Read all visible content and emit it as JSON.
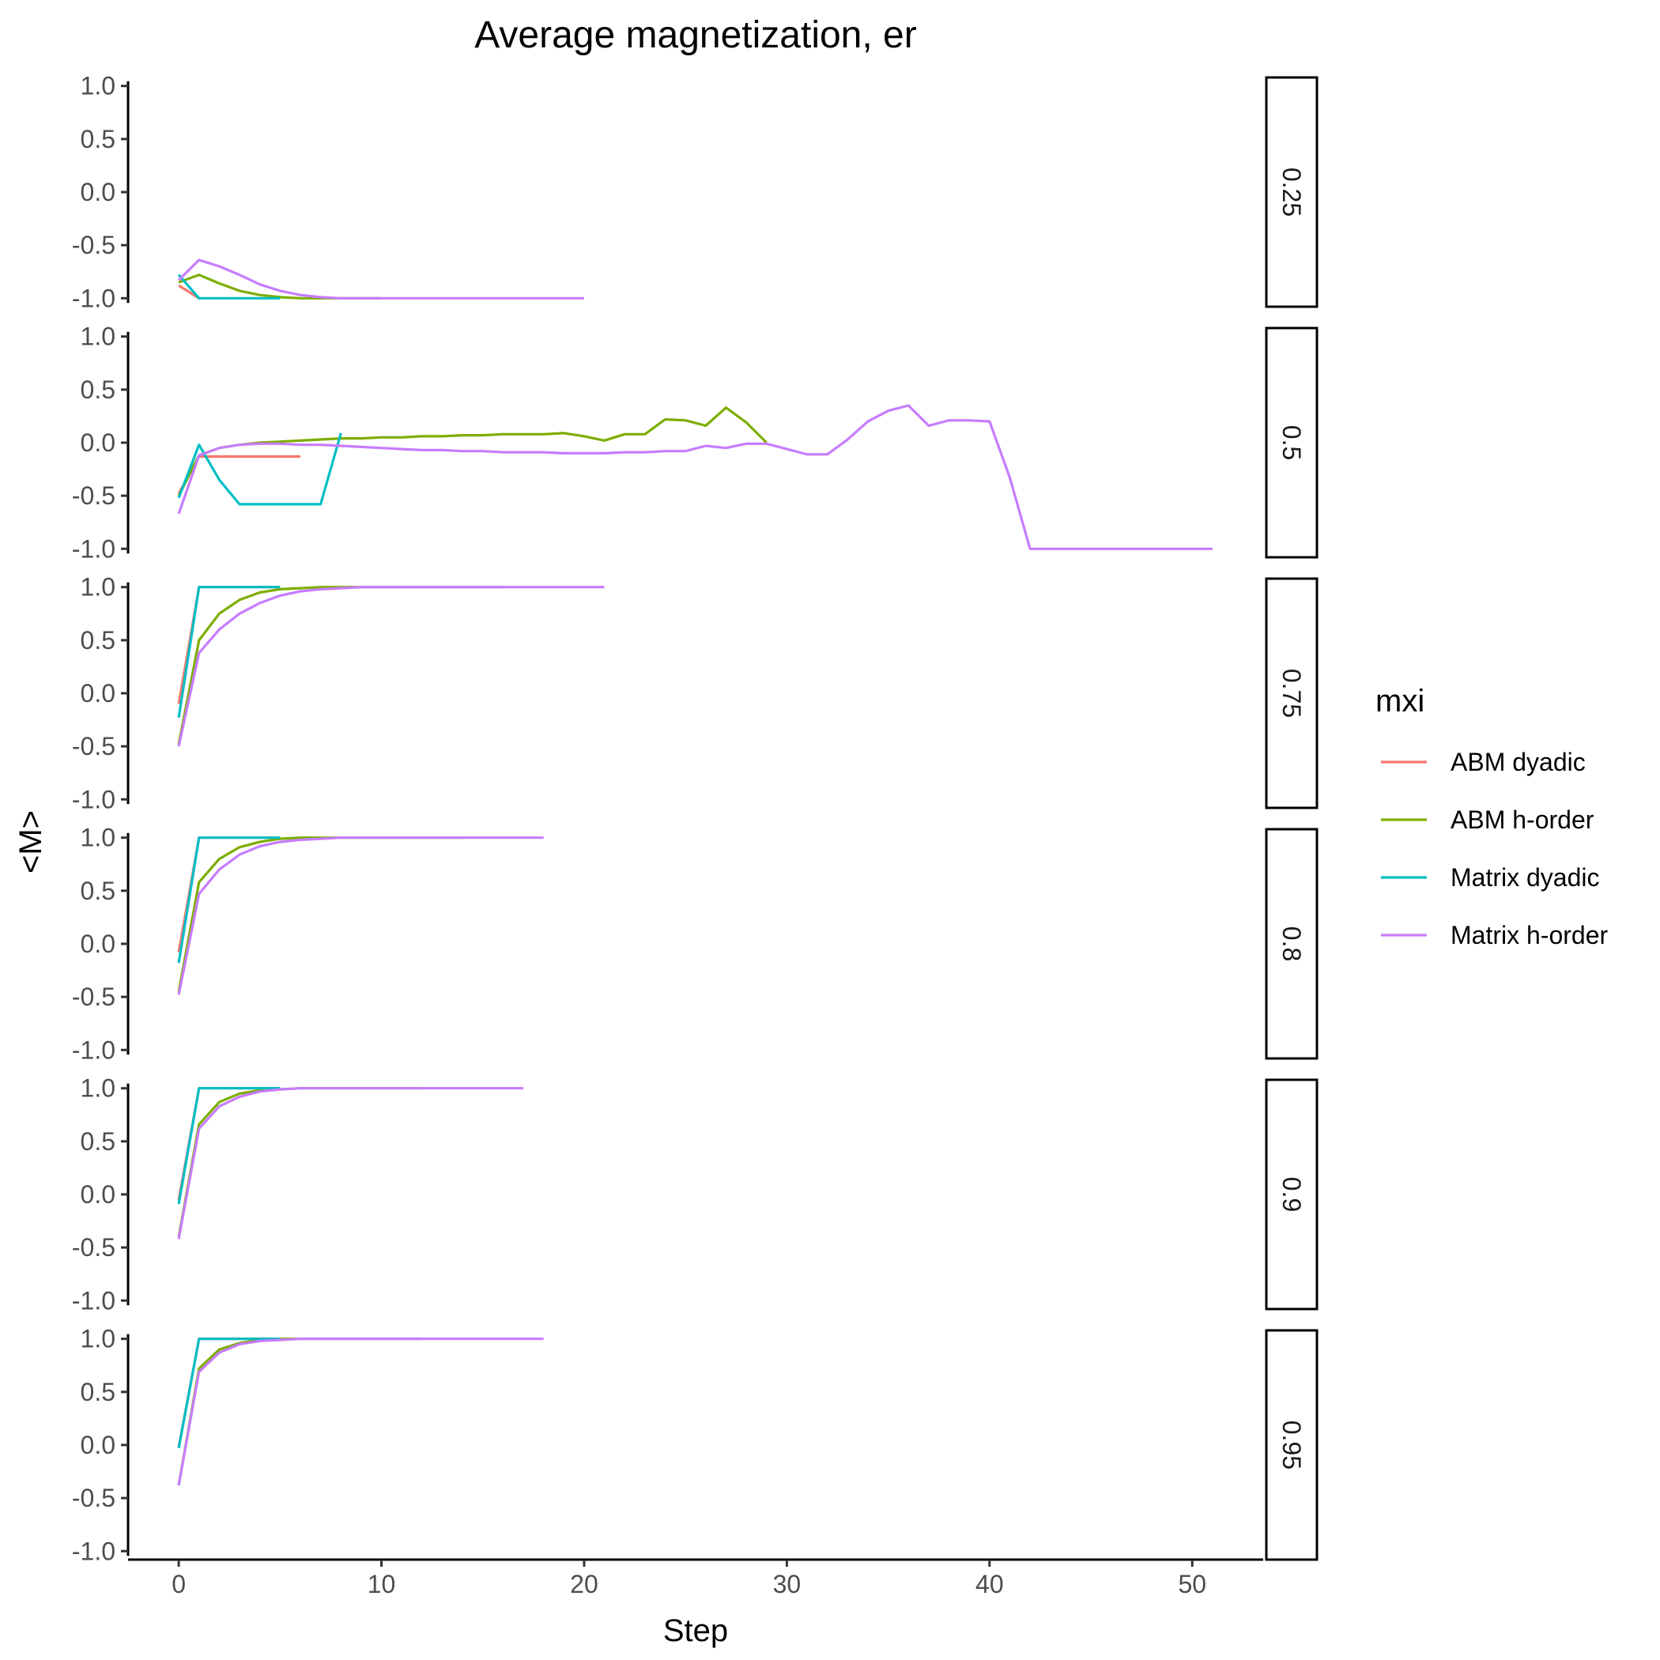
{
  "chart_data": {
    "type": "line",
    "title": "Average magnetization, er",
    "xlabel": "Step",
    "ylabel": "<M>",
    "xlim": [
      -2.5,
      53.5
    ],
    "ylim": [
      -1.08,
      1.08
    ],
    "x_ticks": [
      0,
      10,
      20,
      30,
      40,
      50
    ],
    "x_tick_labels": [
      "0",
      "10",
      "20",
      "30",
      "40",
      "50"
    ],
    "y_ticks": [
      -1.0,
      -0.5,
      0.0,
      0.5,
      1.0
    ],
    "y_tick_labels": [
      "-1.0",
      "-0.5",
      "0.0",
      "0.5",
      "1.0"
    ],
    "grid": false,
    "legend": {
      "title": "mxi",
      "position": "right",
      "entries": [
        {
          "name": "ABM dyadic",
          "color": "#F8766D"
        },
        {
          "name": "ABM h-order",
          "color": "#7CAE00"
        },
        {
          "name": "Matrix dyadic",
          "color": "#00BFC4"
        },
        {
          "name": "Matrix h-order",
          "color": "#C77CFF"
        }
      ]
    },
    "facets": [
      {
        "label": "0.25",
        "series": [
          {
            "name": "ABM dyadic",
            "x": [
              0,
              1
            ],
            "y": [
              -0.88,
              -1.0
            ]
          },
          {
            "name": "ABM h-order",
            "x": [
              0,
              1,
              2,
              3,
              4,
              5,
              6,
              7,
              8,
              9,
              10
            ],
            "y": [
              -0.85,
              -0.78,
              -0.86,
              -0.93,
              -0.97,
              -0.99,
              -1.0,
              -1.0,
              -1.0,
              -1.0,
              -1.0
            ]
          },
          {
            "name": "Matrix dyadic",
            "x": [
              0,
              1,
              2,
              3,
              4,
              5
            ],
            "y": [
              -0.78,
              -1.0,
              -1.0,
              -1.0,
              -1.0,
              -1.0
            ]
          },
          {
            "name": "Matrix h-order",
            "x": [
              0,
              1,
              2,
              3,
              4,
              5,
              6,
              7,
              8,
              9,
              10,
              11,
              12,
              13,
              14,
              15,
              16,
              17,
              18,
              19,
              20
            ],
            "y": [
              -0.83,
              -0.64,
              -0.7,
              -0.78,
              -0.87,
              -0.93,
              -0.97,
              -0.99,
              -1.0,
              -1.0,
              -1.0,
              -1.0,
              -1.0,
              -1.0,
              -1.0,
              -1.0,
              -1.0,
              -1.0,
              -1.0,
              -1.0,
              -1.0
            ]
          }
        ]
      },
      {
        "label": "0.5",
        "series": [
          {
            "name": "ABM dyadic",
            "x": [
              0,
              1,
              2,
              3,
              4,
              5,
              6
            ],
            "y": [
              -0.48,
              -0.13,
              -0.13,
              -0.13,
              -0.13,
              -0.13,
              -0.13
            ]
          },
          {
            "name": "ABM h-order",
            "x": [
              0,
              1,
              2,
              3,
              4,
              5,
              6,
              7,
              8,
              9,
              10,
              11,
              12,
              13,
              14,
              15,
              16,
              17,
              18,
              19,
              20,
              21,
              22,
              23,
              24,
              25,
              26,
              27,
              28,
              29
            ],
            "y": [
              -0.5,
              -0.12,
              -0.05,
              -0.02,
              0.0,
              0.01,
              0.02,
              0.03,
              0.04,
              0.04,
              0.05,
              0.05,
              0.06,
              0.06,
              0.07,
              0.07,
              0.08,
              0.08,
              0.08,
              0.09,
              0.06,
              0.02,
              0.08,
              0.08,
              0.22,
              0.21,
              0.16,
              0.33,
              0.19,
              0.0
            ]
          },
          {
            "name": "Matrix dyadic",
            "x": [
              0,
              1,
              2,
              3,
              4,
              5,
              6,
              7,
              8
            ],
            "y": [
              -0.52,
              -0.02,
              -0.35,
              -0.58,
              -0.58,
              -0.58,
              -0.58,
              -0.58,
              0.09
            ]
          },
          {
            "name": "Matrix h-order",
            "x": [
              0,
              1,
              2,
              3,
              4,
              5,
              6,
              7,
              8,
              9,
              10,
              11,
              12,
              13,
              14,
              15,
              16,
              17,
              18,
              19,
              20,
              21,
              22,
              23,
              24,
              25,
              26,
              27,
              28,
              29,
              30,
              31,
              32,
              33,
              34,
              35,
              36,
              37,
              38,
              39,
              40,
              41,
              42,
              43,
              44,
              45,
              46,
              47,
              48,
              49,
              50,
              51
            ],
            "y": [
              -0.67,
              -0.12,
              -0.05,
              -0.02,
              -0.01,
              -0.01,
              -0.02,
              -0.02,
              -0.03,
              -0.04,
              -0.05,
              -0.06,
              -0.07,
              -0.07,
              -0.08,
              -0.08,
              -0.09,
              -0.09,
              -0.09,
              -0.1,
              -0.1,
              -0.1,
              -0.09,
              -0.09,
              -0.08,
              -0.08,
              -0.03,
              -0.05,
              -0.01,
              -0.01,
              -0.06,
              -0.11,
              -0.11,
              0.03,
              0.2,
              0.3,
              0.35,
              0.16,
              0.21,
              0.21,
              0.2,
              -0.33,
              -1.0,
              -1.0,
              -1.0,
              -1.0,
              -1.0,
              -1.0,
              -1.0,
              -1.0,
              -1.0,
              -1.0
            ]
          }
        ]
      },
      {
        "label": "0.75",
        "series": [
          {
            "name": "ABM dyadic",
            "x": [
              0,
              1,
              2,
              3,
              4,
              5
            ],
            "y": [
              -0.1,
              1.0,
              1.0,
              1.0,
              1.0,
              1.0
            ]
          },
          {
            "name": "ABM h-order",
            "x": [
              0,
              1,
              2,
              3,
              4,
              5,
              6,
              7,
              8,
              9,
              10,
              11,
              12,
              13,
              14,
              15,
              16
            ],
            "y": [
              -0.48,
              0.5,
              0.75,
              0.88,
              0.95,
              0.98,
              0.99,
              1.0,
              1.0,
              1.0,
              1.0,
              1.0,
              1.0,
              1.0,
              1.0,
              1.0,
              1.0
            ]
          },
          {
            "name": "Matrix dyadic",
            "x": [
              0,
              1,
              2,
              3,
              4,
              5
            ],
            "y": [
              -0.23,
              1.0,
              1.0,
              1.0,
              1.0,
              1.0
            ]
          },
          {
            "name": "Matrix h-order",
            "x": [
              0,
              1,
              2,
              3,
              4,
              5,
              6,
              7,
              8,
              9,
              10,
              11,
              12,
              13,
              14,
              15,
              16,
              17,
              18,
              19,
              20,
              21
            ],
            "y": [
              -0.5,
              0.38,
              0.6,
              0.75,
              0.85,
              0.92,
              0.96,
              0.98,
              0.99,
              1.0,
              1.0,
              1.0,
              1.0,
              1.0,
              1.0,
              1.0,
              1.0,
              1.0,
              1.0,
              1.0,
              1.0,
              1.0
            ]
          }
        ]
      },
      {
        "label": "0.8",
        "series": [
          {
            "name": "ABM dyadic",
            "x": [
              0,
              1,
              2,
              3,
              4,
              5
            ],
            "y": [
              -0.08,
              1.0,
              1.0,
              1.0,
              1.0,
              1.0
            ]
          },
          {
            "name": "ABM h-order",
            "x": [
              0,
              1,
              2,
              3,
              4,
              5,
              6,
              7,
              8,
              9,
              10,
              11,
              12,
              13,
              14
            ],
            "y": [
              -0.45,
              0.58,
              0.8,
              0.91,
              0.96,
              0.99,
              1.0,
              1.0,
              1.0,
              1.0,
              1.0,
              1.0,
              1.0,
              1.0,
              1.0
            ]
          },
          {
            "name": "Matrix dyadic",
            "x": [
              0,
              1,
              2,
              3,
              4,
              5
            ],
            "y": [
              -0.18,
              1.0,
              1.0,
              1.0,
              1.0,
              1.0
            ]
          },
          {
            "name": "Matrix h-order",
            "x": [
              0,
              1,
              2,
              3,
              4,
              5,
              6,
              7,
              8,
              9,
              10,
              11,
              12,
              13,
              14,
              15,
              16,
              17,
              18
            ],
            "y": [
              -0.48,
              0.47,
              0.7,
              0.84,
              0.92,
              0.96,
              0.98,
              0.99,
              1.0,
              1.0,
              1.0,
              1.0,
              1.0,
              1.0,
              1.0,
              1.0,
              1.0,
              1.0,
              1.0
            ]
          }
        ]
      },
      {
        "label": "0.9",
        "series": [
          {
            "name": "ABM dyadic",
            "x": [
              0,
              1,
              2,
              3,
              4,
              5
            ],
            "y": [
              -0.05,
              1.0,
              1.0,
              1.0,
              1.0,
              1.0
            ]
          },
          {
            "name": "ABM h-order",
            "x": [
              0,
              1,
              2,
              3,
              4,
              5,
              6,
              7,
              8,
              9,
              10,
              11,
              12
            ],
            "y": [
              -0.4,
              0.66,
              0.87,
              0.95,
              0.98,
              0.99,
              1.0,
              1.0,
              1.0,
              1.0,
              1.0,
              1.0,
              1.0
            ]
          },
          {
            "name": "Matrix dyadic",
            "x": [
              0,
              1,
              2,
              3,
              4,
              5
            ],
            "y": [
              -0.09,
              1.0,
              1.0,
              1.0,
              1.0,
              1.0
            ]
          },
          {
            "name": "Matrix h-order",
            "x": [
              0,
              1,
              2,
              3,
              4,
              5,
              6,
              7,
              8,
              9,
              10,
              11,
              12,
              13,
              14,
              15,
              16,
              17
            ],
            "y": [
              -0.42,
              0.62,
              0.83,
              0.92,
              0.97,
              0.99,
              1.0,
              1.0,
              1.0,
              1.0,
              1.0,
              1.0,
              1.0,
              1.0,
              1.0,
              1.0,
              1.0,
              1.0
            ]
          }
        ]
      },
      {
        "label": "0.95",
        "series": [
          {
            "name": "ABM dyadic",
            "x": [
              0,
              1,
              2,
              3,
              4,
              5
            ],
            "y": [
              -0.02,
              1.0,
              1.0,
              1.0,
              1.0,
              1.0
            ]
          },
          {
            "name": "ABM h-order",
            "x": [
              0,
              1,
              2,
              3,
              4,
              5,
              6,
              7,
              8,
              9,
              10,
              11,
              12
            ],
            "y": [
              -0.38,
              0.72,
              0.9,
              0.96,
              0.99,
              1.0,
              1.0,
              1.0,
              1.0,
              1.0,
              1.0,
              1.0,
              1.0
            ]
          },
          {
            "name": "Matrix dyadic",
            "x": [
              0,
              1,
              2,
              3,
              4,
              5
            ],
            "y": [
              -0.03,
              1.0,
              1.0,
              1.0,
              1.0,
              1.0
            ]
          },
          {
            "name": "Matrix h-order",
            "x": [
              0,
              1,
              2,
              3,
              4,
              5,
              6,
              7,
              8,
              9,
              10,
              11,
              12,
              13,
              14,
              15,
              16,
              17,
              18
            ],
            "y": [
              -0.38,
              0.69,
              0.87,
              0.95,
              0.98,
              0.99,
              1.0,
              1.0,
              1.0,
              1.0,
              1.0,
              1.0,
              1.0,
              1.0,
              1.0,
              1.0,
              1.0,
              1.0,
              1.0
            ]
          }
        ]
      }
    ]
  }
}
